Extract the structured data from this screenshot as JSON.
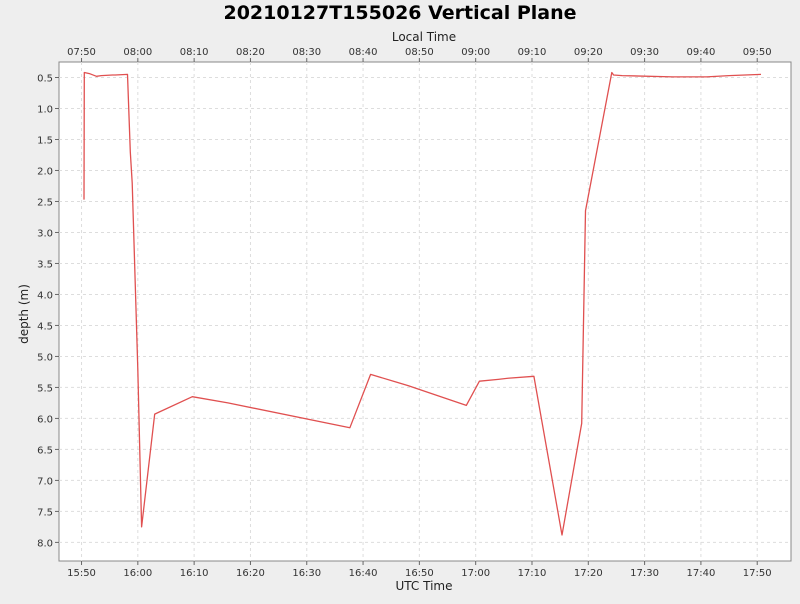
{
  "chart_data": {
    "type": "line",
    "title": "20210127T155026 Vertical Plane",
    "xlabel": "UTC Time",
    "x2label": "Local Time",
    "ylabel": "depth (m)",
    "y_inverted": true,
    "grid": true,
    "line_color": "#e05050",
    "xlim": [
      "15:46",
      "17:56"
    ],
    "ylim": [
      0.25,
      8.3
    ],
    "x_ticks": [
      "15:50",
      "16:00",
      "16:10",
      "16:20",
      "16:30",
      "16:40",
      "16:50",
      "17:00",
      "17:10",
      "17:20",
      "17:30",
      "17:40",
      "17:50"
    ],
    "x2_ticks": [
      "07:50",
      "08:00",
      "08:10",
      "08:20",
      "08:30",
      "08:40",
      "08:50",
      "09:00",
      "09:10",
      "09:20",
      "09:30",
      "09:40",
      "09:50"
    ],
    "y_ticks": [
      "0.5",
      "1.0",
      "1.5",
      "2.0",
      "2.5",
      "3.0",
      "3.5",
      "4.0",
      "4.5",
      "5.0",
      "5.5",
      "6.0",
      "6.5",
      "7.0",
      "7.5",
      "8.0"
    ],
    "series": [
      {
        "x": [
          "15:50:26",
          "15:50:30",
          "15:51:30",
          "15:52:40",
          "15:53:30",
          "15:55:30",
          "15:56:00",
          "15:58:10",
          "15:58:40",
          "15:59:00",
          "16:00:00",
          "16:00:40",
          "16:03:00",
          "16:09:40",
          "16:16:00",
          "16:37:40",
          "16:41:20",
          "16:48:00",
          "16:58:20",
          "17:00:40",
          "17:04:00",
          "17:06:00",
          "17:10:20",
          "17:15:20",
          "17:18:50",
          "17:19:30",
          "17:24:10",
          "17:24:30",
          "17:26:00",
          "17:35:00",
          "17:41:00",
          "17:45:00",
          "17:50:40"
        ],
        "values": [
          2.47,
          0.42,
          0.44,
          0.48,
          0.47,
          0.46,
          0.46,
          0.45,
          1.7,
          2.2,
          5.2,
          7.75,
          5.93,
          5.65,
          5.75,
          6.15,
          5.29,
          5.47,
          5.79,
          5.4,
          5.37,
          5.35,
          5.32,
          7.88,
          6.08,
          2.65,
          0.42,
          0.46,
          0.47,
          0.49,
          0.49,
          0.47,
          0.45
        ]
      }
    ]
  }
}
